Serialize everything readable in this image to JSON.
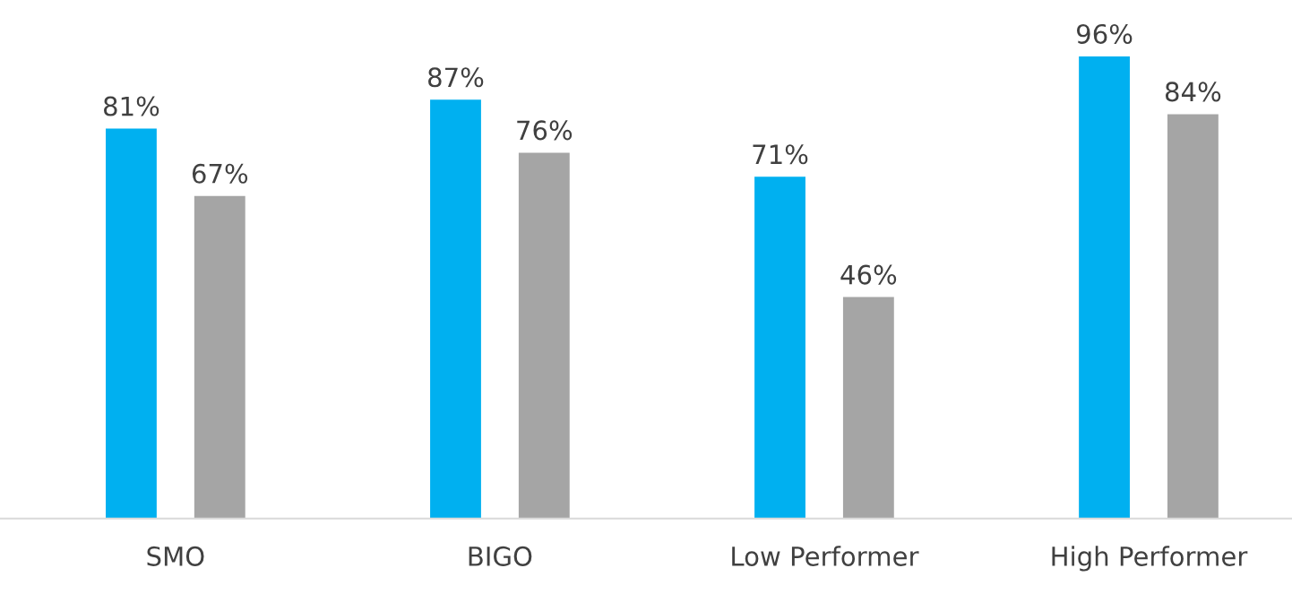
{
  "chart_data": {
    "type": "bar",
    "categories": [
      "SMO",
      "BIGO",
      "Low Performer",
      "High Performer"
    ],
    "series": [
      {
        "color": "#00b0f0",
        "values": [
          81,
          87,
          71,
          96
        ],
        "value_labels": [
          "81%",
          "87%",
          "71%",
          "96%"
        ]
      },
      {
        "color": "#a5a5a5",
        "values": [
          67,
          76,
          46,
          84
        ],
        "value_labels": [
          "67%",
          "76%",
          "46%",
          "84%"
        ]
      }
    ],
    "tick_labels": "x",
    "grid": false,
    "legend": false
  }
}
